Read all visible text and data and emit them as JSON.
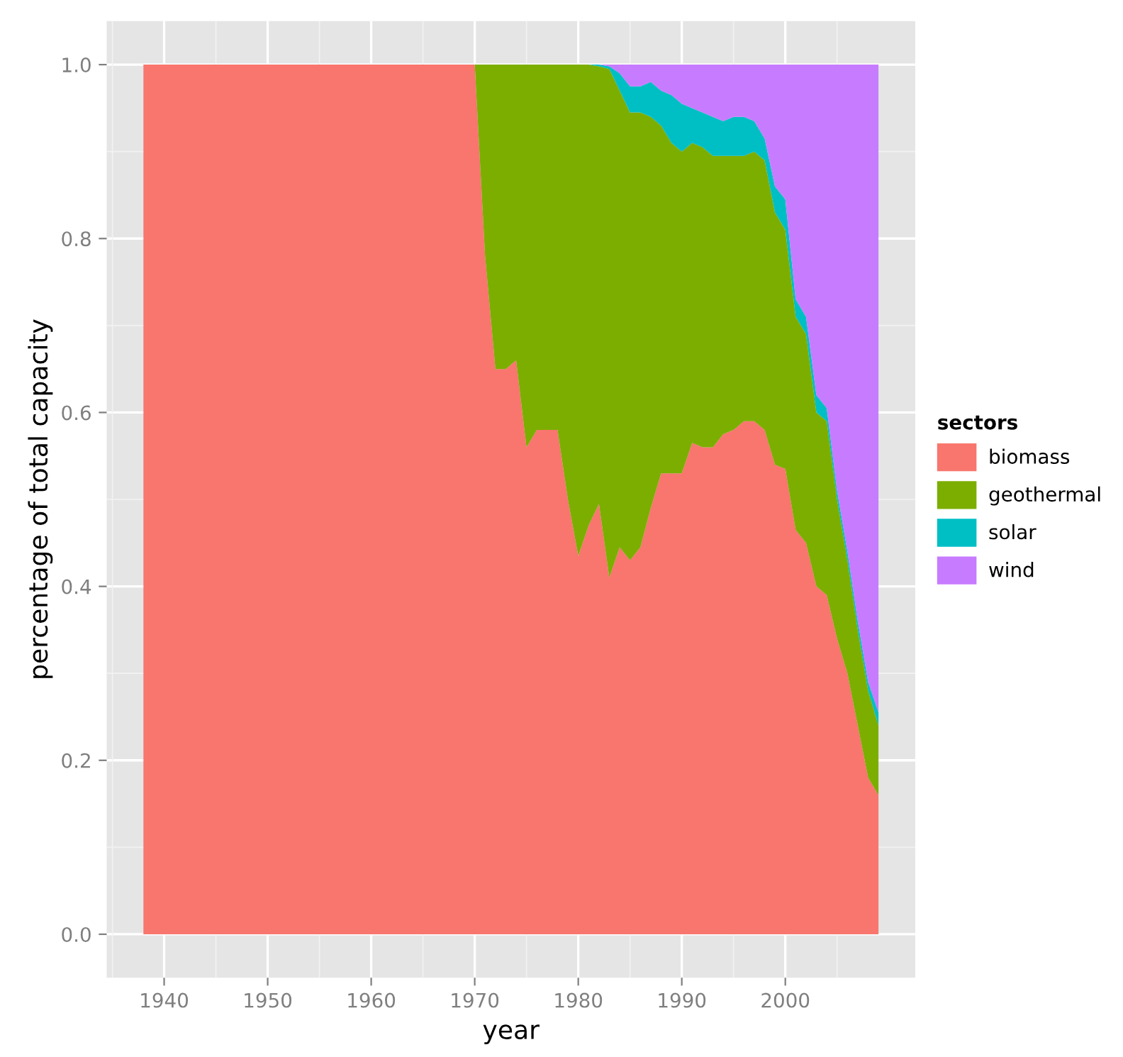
{
  "chart_data": {
    "type": "area",
    "stacked": true,
    "xlabel": "year",
    "ylabel": "percentage of total capacity",
    "legend_title": "sectors",
    "legend": "right",
    "grid": true,
    "x": [
      1938,
      1939,
      1940,
      1941,
      1942,
      1943,
      1944,
      1945,
      1946,
      1947,
      1948,
      1949,
      1950,
      1951,
      1952,
      1953,
      1954,
      1955,
      1956,
      1957,
      1958,
      1959,
      1960,
      1961,
      1962,
      1963,
      1964,
      1965,
      1966,
      1967,
      1968,
      1969,
      1970,
      1971,
      1972,
      1973,
      1974,
      1975,
      1976,
      1977,
      1978,
      1979,
      1980,
      1981,
      1982,
      1983,
      1984,
      1985,
      1986,
      1987,
      1988,
      1989,
      1990,
      1991,
      1992,
      1993,
      1994,
      1995,
      1996,
      1997,
      1998,
      1999,
      2000,
      2001,
      2002,
      2003,
      2004,
      2005,
      2006,
      2007,
      2008,
      2009
    ],
    "xlim": [
      1934.45,
      2012.55
    ],
    "xticks": [
      1940,
      1950,
      1960,
      1970,
      1980,
      1990,
      2000
    ],
    "ylim": [
      -0.05,
      1.05
    ],
    "yticks": [
      {
        "value": 0,
        "label": "0.0"
      },
      0.2,
      0.4,
      0.6,
      0.8,
      {
        "value": 1,
        "label": "1.0"
      }
    ],
    "series": [
      {
        "name": "biomass",
        "color": "#f8766d",
        "values": [
          1,
          1,
          1,
          1,
          1,
          1,
          1,
          1,
          1,
          1,
          1,
          1,
          1,
          1,
          1,
          1,
          1,
          1,
          1,
          1,
          1,
          1,
          1,
          1,
          1,
          1,
          1,
          1,
          1,
          1,
          1,
          1,
          1,
          0.78,
          0.65,
          0.65,
          0.66,
          0.56,
          0.58,
          0.58,
          0.58,
          0.5,
          0.435,
          0.47,
          0.495,
          0.41,
          0.445,
          0.43,
          0.445,
          0.49,
          0.53,
          0.53,
          0.53,
          0.565,
          0.56,
          0.56,
          0.575,
          0.58,
          0.59,
          0.59,
          0.58,
          0.54,
          0.535,
          0.465,
          0.45,
          0.4,
          0.39,
          0.34,
          0.3,
          0.24,
          0.18,
          0.16
        ]
      },
      {
        "name": "geothermal",
        "color": "#7cae00",
        "values": [
          0,
          0,
          0,
          0,
          0,
          0,
          0,
          0,
          0,
          0,
          0,
          0,
          0,
          0,
          0,
          0,
          0,
          0,
          0,
          0,
          0,
          0,
          0,
          0,
          0,
          0,
          0,
          0,
          0,
          0,
          0,
          0,
          0,
          0.22,
          0.35,
          0.35,
          0.34,
          0.44,
          0.42,
          0.42,
          0.42,
          0.5,
          0.565,
          0.53,
          0.503,
          0.585,
          0.525,
          0.515,
          0.5,
          0.45,
          0.4,
          0.38,
          0.37,
          0.345,
          0.345,
          0.335,
          0.32,
          0.315,
          0.305,
          0.31,
          0.31,
          0.29,
          0.275,
          0.245,
          0.24,
          0.2,
          0.2,
          0.16,
          0.13,
          0.11,
          0.1,
          0.08
        ]
      },
      {
        "name": "solar",
        "color": "#00bfc4",
        "values": [
          0,
          0,
          0,
          0,
          0,
          0,
          0,
          0,
          0,
          0,
          0,
          0,
          0,
          0,
          0,
          0,
          0,
          0,
          0,
          0,
          0,
          0,
          0,
          0,
          0,
          0,
          0,
          0,
          0,
          0,
          0,
          0,
          0,
          0,
          0,
          0,
          0,
          0,
          0,
          0,
          0,
          0,
          0,
          0,
          0.002,
          0.003,
          0.02,
          0.03,
          0.03,
          0.04,
          0.04,
          0.055,
          0.055,
          0.04,
          0.04,
          0.045,
          0.04,
          0.045,
          0.045,
          0.035,
          0.025,
          0.03,
          0.035,
          0.02,
          0.02,
          0.02,
          0.015,
          0.01,
          0.01,
          0.01,
          0.01,
          0.015
        ]
      },
      {
        "name": "wind",
        "color": "#c77cff",
        "values": [
          0,
          0,
          0,
          0,
          0,
          0,
          0,
          0,
          0,
          0,
          0,
          0,
          0,
          0,
          0,
          0,
          0,
          0,
          0,
          0,
          0,
          0,
          0,
          0,
          0,
          0,
          0,
          0,
          0,
          0,
          0,
          0,
          0,
          0,
          0,
          0,
          0,
          0,
          0,
          0,
          0,
          0,
          0,
          0,
          0,
          0.002,
          0.01,
          0.025,
          0.025,
          0.02,
          0.03,
          0.035,
          0.045,
          0.05,
          0.055,
          0.06,
          0.065,
          0.06,
          0.06,
          0.065,
          0.085,
          0.14,
          0.155,
          0.27,
          0.29,
          0.38,
          0.395,
          0.49,
          0.56,
          0.64,
          0.71,
          0.745
        ]
      }
    ]
  }
}
